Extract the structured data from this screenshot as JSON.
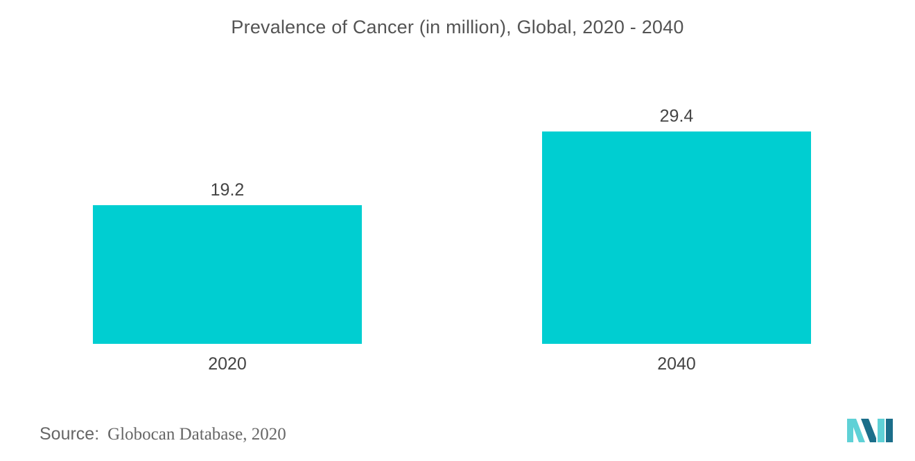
{
  "chart_data": {
    "type": "bar",
    "title": "Prevalence of Cancer (in million), Global, 2020 - 2040",
    "categories": [
      "2020",
      "2040"
    ],
    "values": [
      19.2,
      29.4
    ],
    "value_labels": [
      "19.2",
      "29.4"
    ],
    "xlabel": "",
    "ylabel": "",
    "ylim": [
      0,
      30
    ],
    "grid": false,
    "legend": "none",
    "bar_color": "#00CED1"
  },
  "source": {
    "label": "Source:",
    "text": "Globocan Database, 2020"
  },
  "colors": {
    "bar": "#00CED1",
    "logo_light": "#5FD1D6",
    "logo_dark": "#1B6E8A"
  },
  "logo": {
    "icon": "brand-logo-icon"
  }
}
